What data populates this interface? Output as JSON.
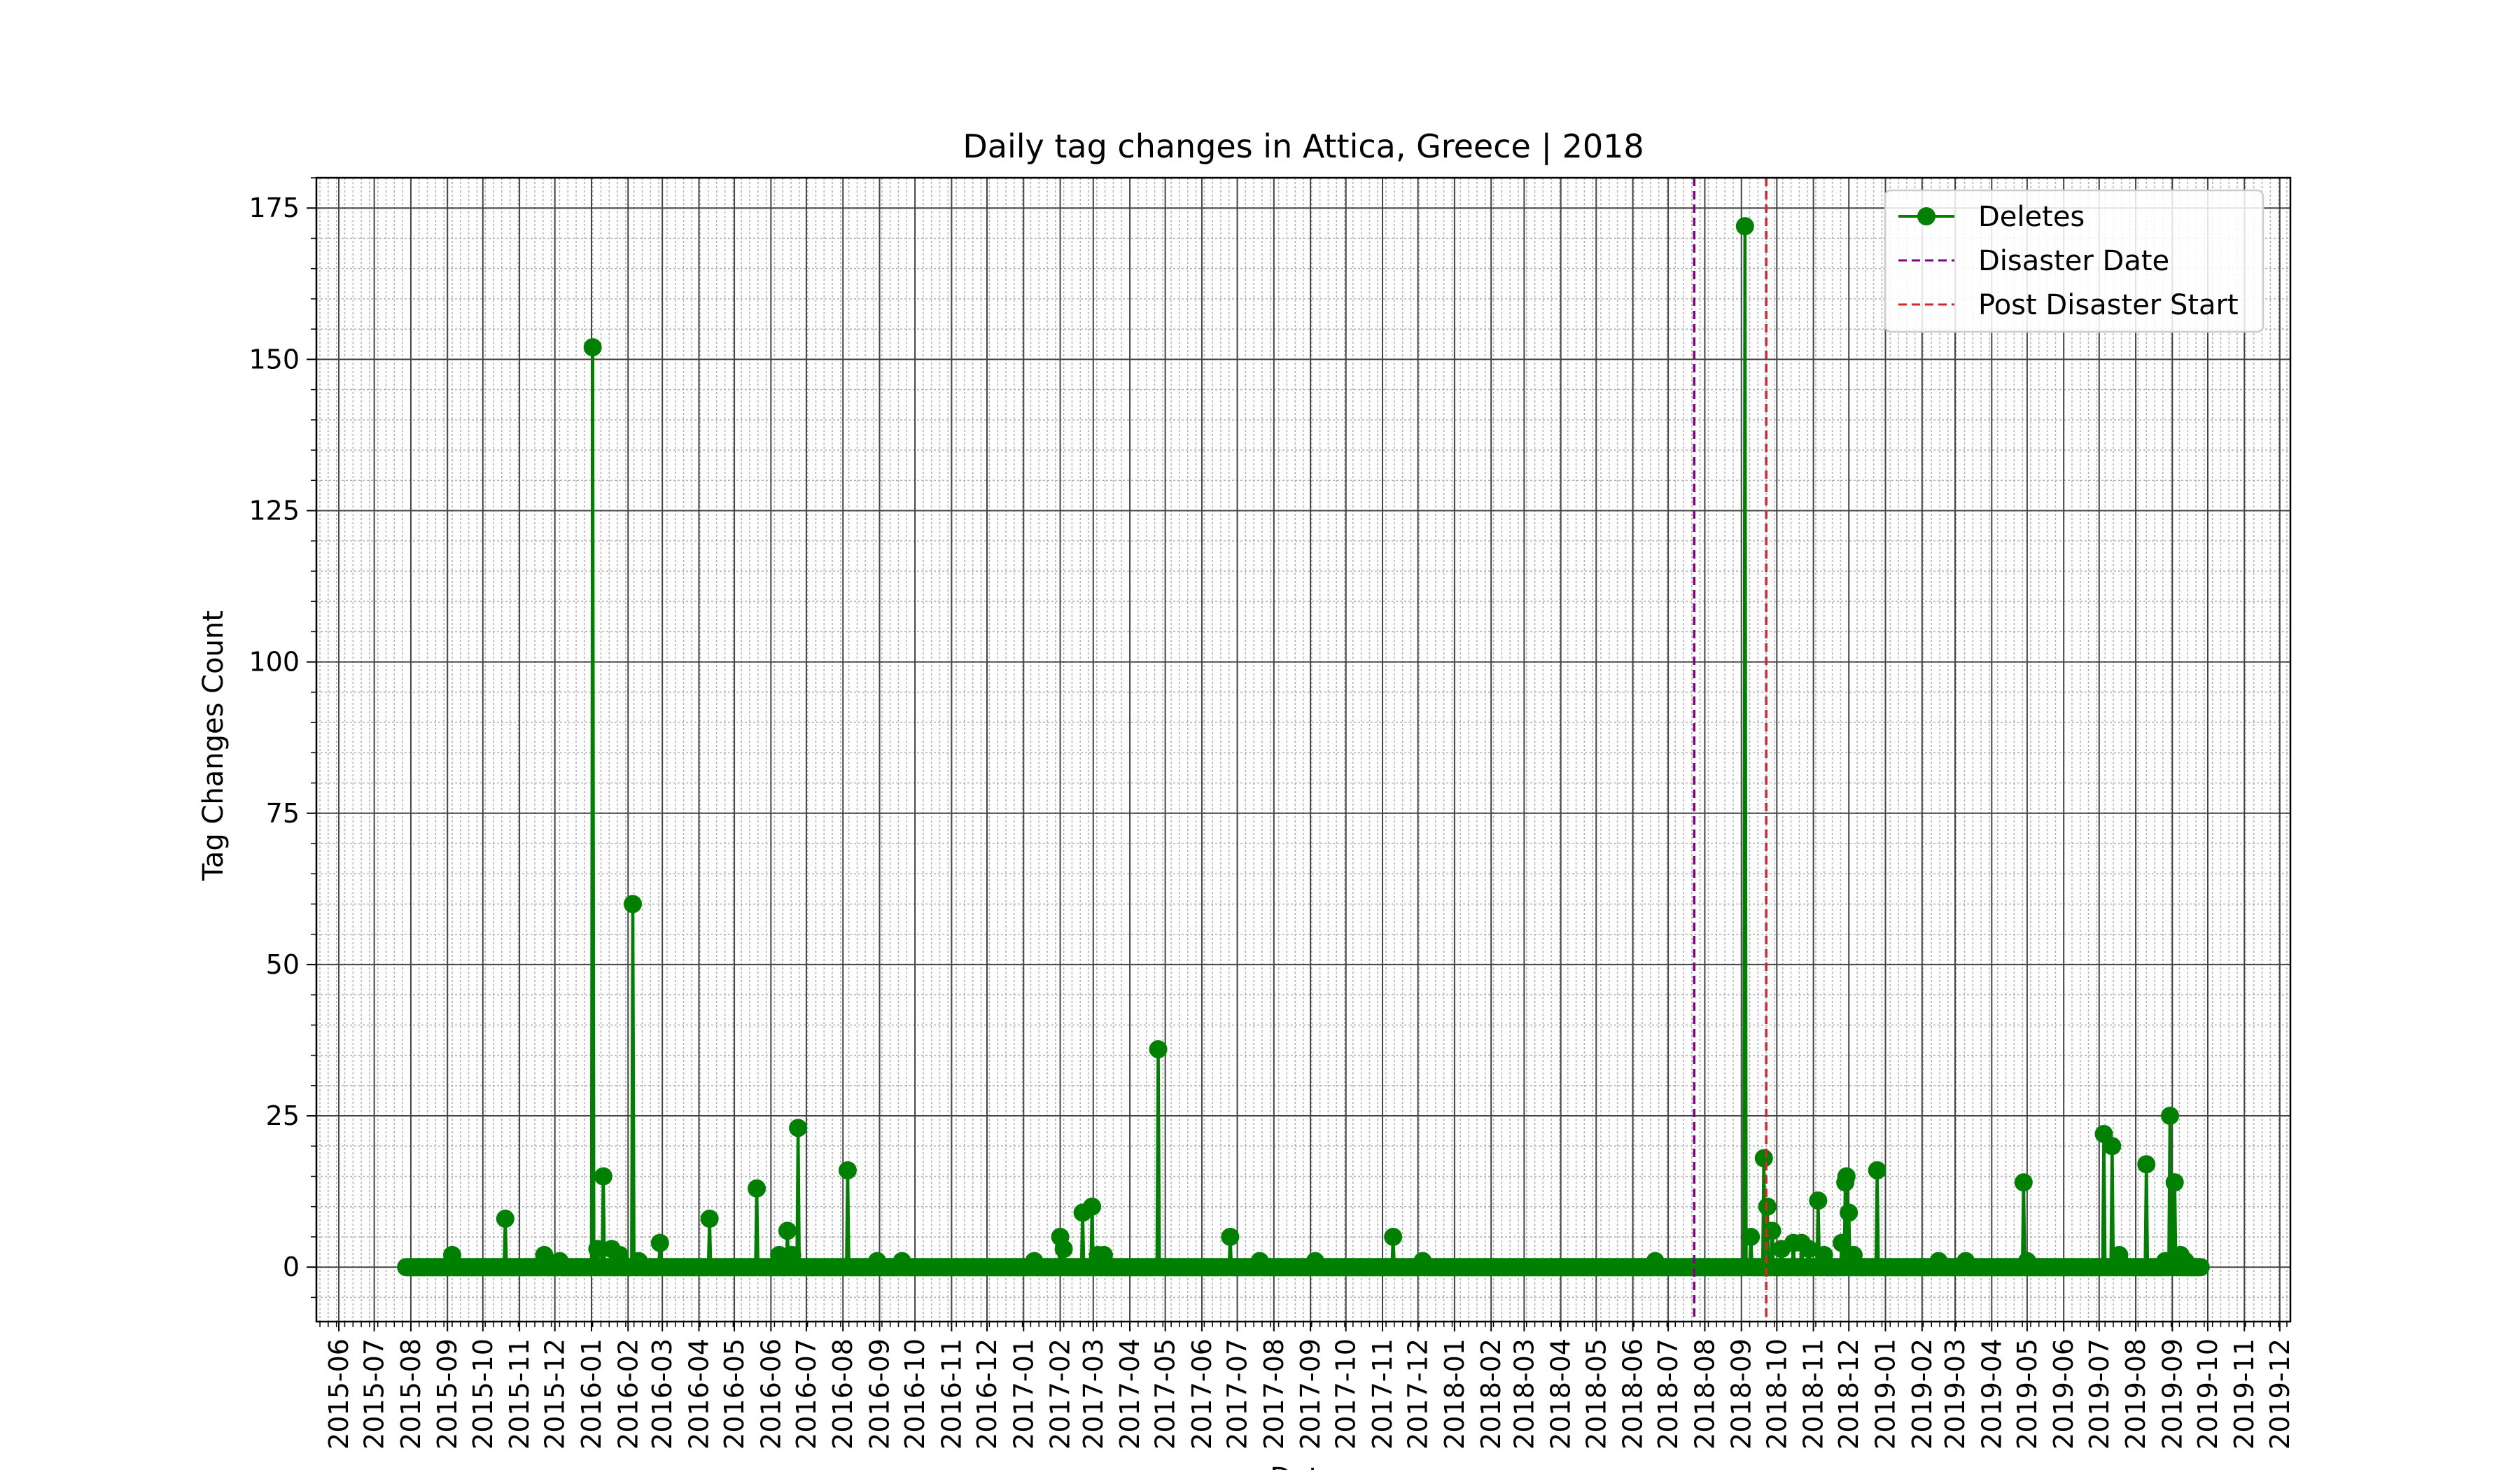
{
  "chart_data": {
    "type": "line",
    "title": "Daily tag changes in Attica, Greece | 2018",
    "xlabel": "Date",
    "ylabel": "Tag Changes Count",
    "x_axis": "date",
    "xlim": [
      "2015-05-13",
      "2019-12-10"
    ],
    "ylim": [
      -9,
      180
    ],
    "yticks": [
      0,
      25,
      50,
      75,
      100,
      125,
      150,
      175
    ],
    "x_tick_labels": [
      "2015-06",
      "2015-07",
      "2015-08",
      "2015-09",
      "2015-10",
      "2015-11",
      "2015-12",
      "2016-01",
      "2016-02",
      "2016-03",
      "2016-04",
      "2016-05",
      "2016-06",
      "2016-07",
      "2016-08",
      "2016-09",
      "2016-10",
      "2016-11",
      "2016-12",
      "2017-01",
      "2017-02",
      "2017-03",
      "2017-04",
      "2017-05",
      "2017-06",
      "2017-07",
      "2017-08",
      "2017-09",
      "2017-10",
      "2017-11",
      "2017-12",
      "2018-01",
      "2018-02",
      "2018-03",
      "2018-04",
      "2018-05",
      "2018-06",
      "2018-07",
      "2018-08",
      "2018-09",
      "2018-10",
      "2018-11",
      "2018-12",
      "2019-01",
      "2019-02",
      "2019-03",
      "2019-04",
      "2019-05",
      "2019-06",
      "2019-07",
      "2019-08",
      "2019-09",
      "2019-10",
      "2019-11",
      "2019-12"
    ],
    "grid": "major and minor",
    "legend_position": "top-right",
    "date_range": [
      "2015-07-28",
      "2019-09-25"
    ],
    "series": [
      {
        "name": "Deletes",
        "color": "#008000",
        "marker": "circle",
        "nonzero_points": [
          {
            "x": "2015-09-05",
            "y": 2
          },
          {
            "x": "2015-10-20",
            "y": 8
          },
          {
            "x": "2015-11-22",
            "y": 2
          },
          {
            "x": "2015-12-05",
            "y": 1
          },
          {
            "x": "2016-01-02",
            "y": 152
          },
          {
            "x": "2016-01-06",
            "y": 3
          },
          {
            "x": "2016-01-11",
            "y": 15
          },
          {
            "x": "2016-01-18",
            "y": 3
          },
          {
            "x": "2016-01-25",
            "y": 2
          },
          {
            "x": "2016-02-05",
            "y": 60
          },
          {
            "x": "2016-02-10",
            "y": 1
          },
          {
            "x": "2016-02-28",
            "y": 4
          },
          {
            "x": "2016-04-10",
            "y": 8
          },
          {
            "x": "2016-05-20",
            "y": 13
          },
          {
            "x": "2016-06-08",
            "y": 2
          },
          {
            "x": "2016-06-15",
            "y": 6
          },
          {
            "x": "2016-06-19",
            "y": 2
          },
          {
            "x": "2016-06-24",
            "y": 23
          },
          {
            "x": "2016-08-05",
            "y": 16
          },
          {
            "x": "2016-08-30",
            "y": 1
          },
          {
            "x": "2016-09-20",
            "y": 1
          },
          {
            "x": "2017-01-10",
            "y": 1
          },
          {
            "x": "2017-02-01",
            "y": 5
          },
          {
            "x": "2017-02-04",
            "y": 3
          },
          {
            "x": "2017-02-20",
            "y": 9
          },
          {
            "x": "2017-02-28",
            "y": 10
          },
          {
            "x": "2017-03-05",
            "y": 2
          },
          {
            "x": "2017-03-10",
            "y": 2
          },
          {
            "x": "2017-04-25",
            "y": 36
          },
          {
            "x": "2017-06-25",
            "y": 5
          },
          {
            "x": "2017-07-20",
            "y": 1
          },
          {
            "x": "2017-09-05",
            "y": 1
          },
          {
            "x": "2017-11-10",
            "y": 5
          },
          {
            "x": "2017-12-05",
            "y": 1
          },
          {
            "x": "2018-06-20",
            "y": 1
          },
          {
            "x": "2018-09-04",
            "y": 172
          },
          {
            "x": "2018-09-09",
            "y": 5
          },
          {
            "x": "2018-09-20",
            "y": 18
          },
          {
            "x": "2018-09-23",
            "y": 10
          },
          {
            "x": "2018-09-27",
            "y": 6
          },
          {
            "x": "2018-10-05",
            "y": 3
          },
          {
            "x": "2018-10-15",
            "y": 4
          },
          {
            "x": "2018-10-22",
            "y": 4
          },
          {
            "x": "2018-10-28",
            "y": 3
          },
          {
            "x": "2018-11-05",
            "y": 11
          },
          {
            "x": "2018-11-10",
            "y": 2
          },
          {
            "x": "2018-11-25",
            "y": 4
          },
          {
            "x": "2018-11-28",
            "y": 14
          },
          {
            "x": "2018-11-29",
            "y": 15
          },
          {
            "x": "2018-12-01",
            "y": 9
          },
          {
            "x": "2018-12-05",
            "y": 2
          },
          {
            "x": "2018-12-25",
            "y": 16
          },
          {
            "x": "2019-02-15",
            "y": 1
          },
          {
            "x": "2019-03-10",
            "y": 1
          },
          {
            "x": "2019-04-28",
            "y": 14
          },
          {
            "x": "2019-05-01",
            "y": 1
          },
          {
            "x": "2019-07-05",
            "y": 22
          },
          {
            "x": "2019-07-12",
            "y": 20
          },
          {
            "x": "2019-07-18",
            "y": 2
          },
          {
            "x": "2019-08-10",
            "y": 17
          },
          {
            "x": "2019-08-26",
            "y": 1
          },
          {
            "x": "2019-08-30",
            "y": 25
          },
          {
            "x": "2019-09-03",
            "y": 14
          },
          {
            "x": "2019-09-08",
            "y": 2
          },
          {
            "x": "2019-09-12",
            "y": 1
          }
        ]
      }
    ],
    "vlines": [
      {
        "name": "Disaster Date",
        "x": "2018-07-23",
        "color": "#800080",
        "style": "dashed"
      },
      {
        "name": "Post Disaster Start",
        "x": "2018-09-22",
        "color": "#d62728",
        "style": "dashed"
      }
    ]
  }
}
